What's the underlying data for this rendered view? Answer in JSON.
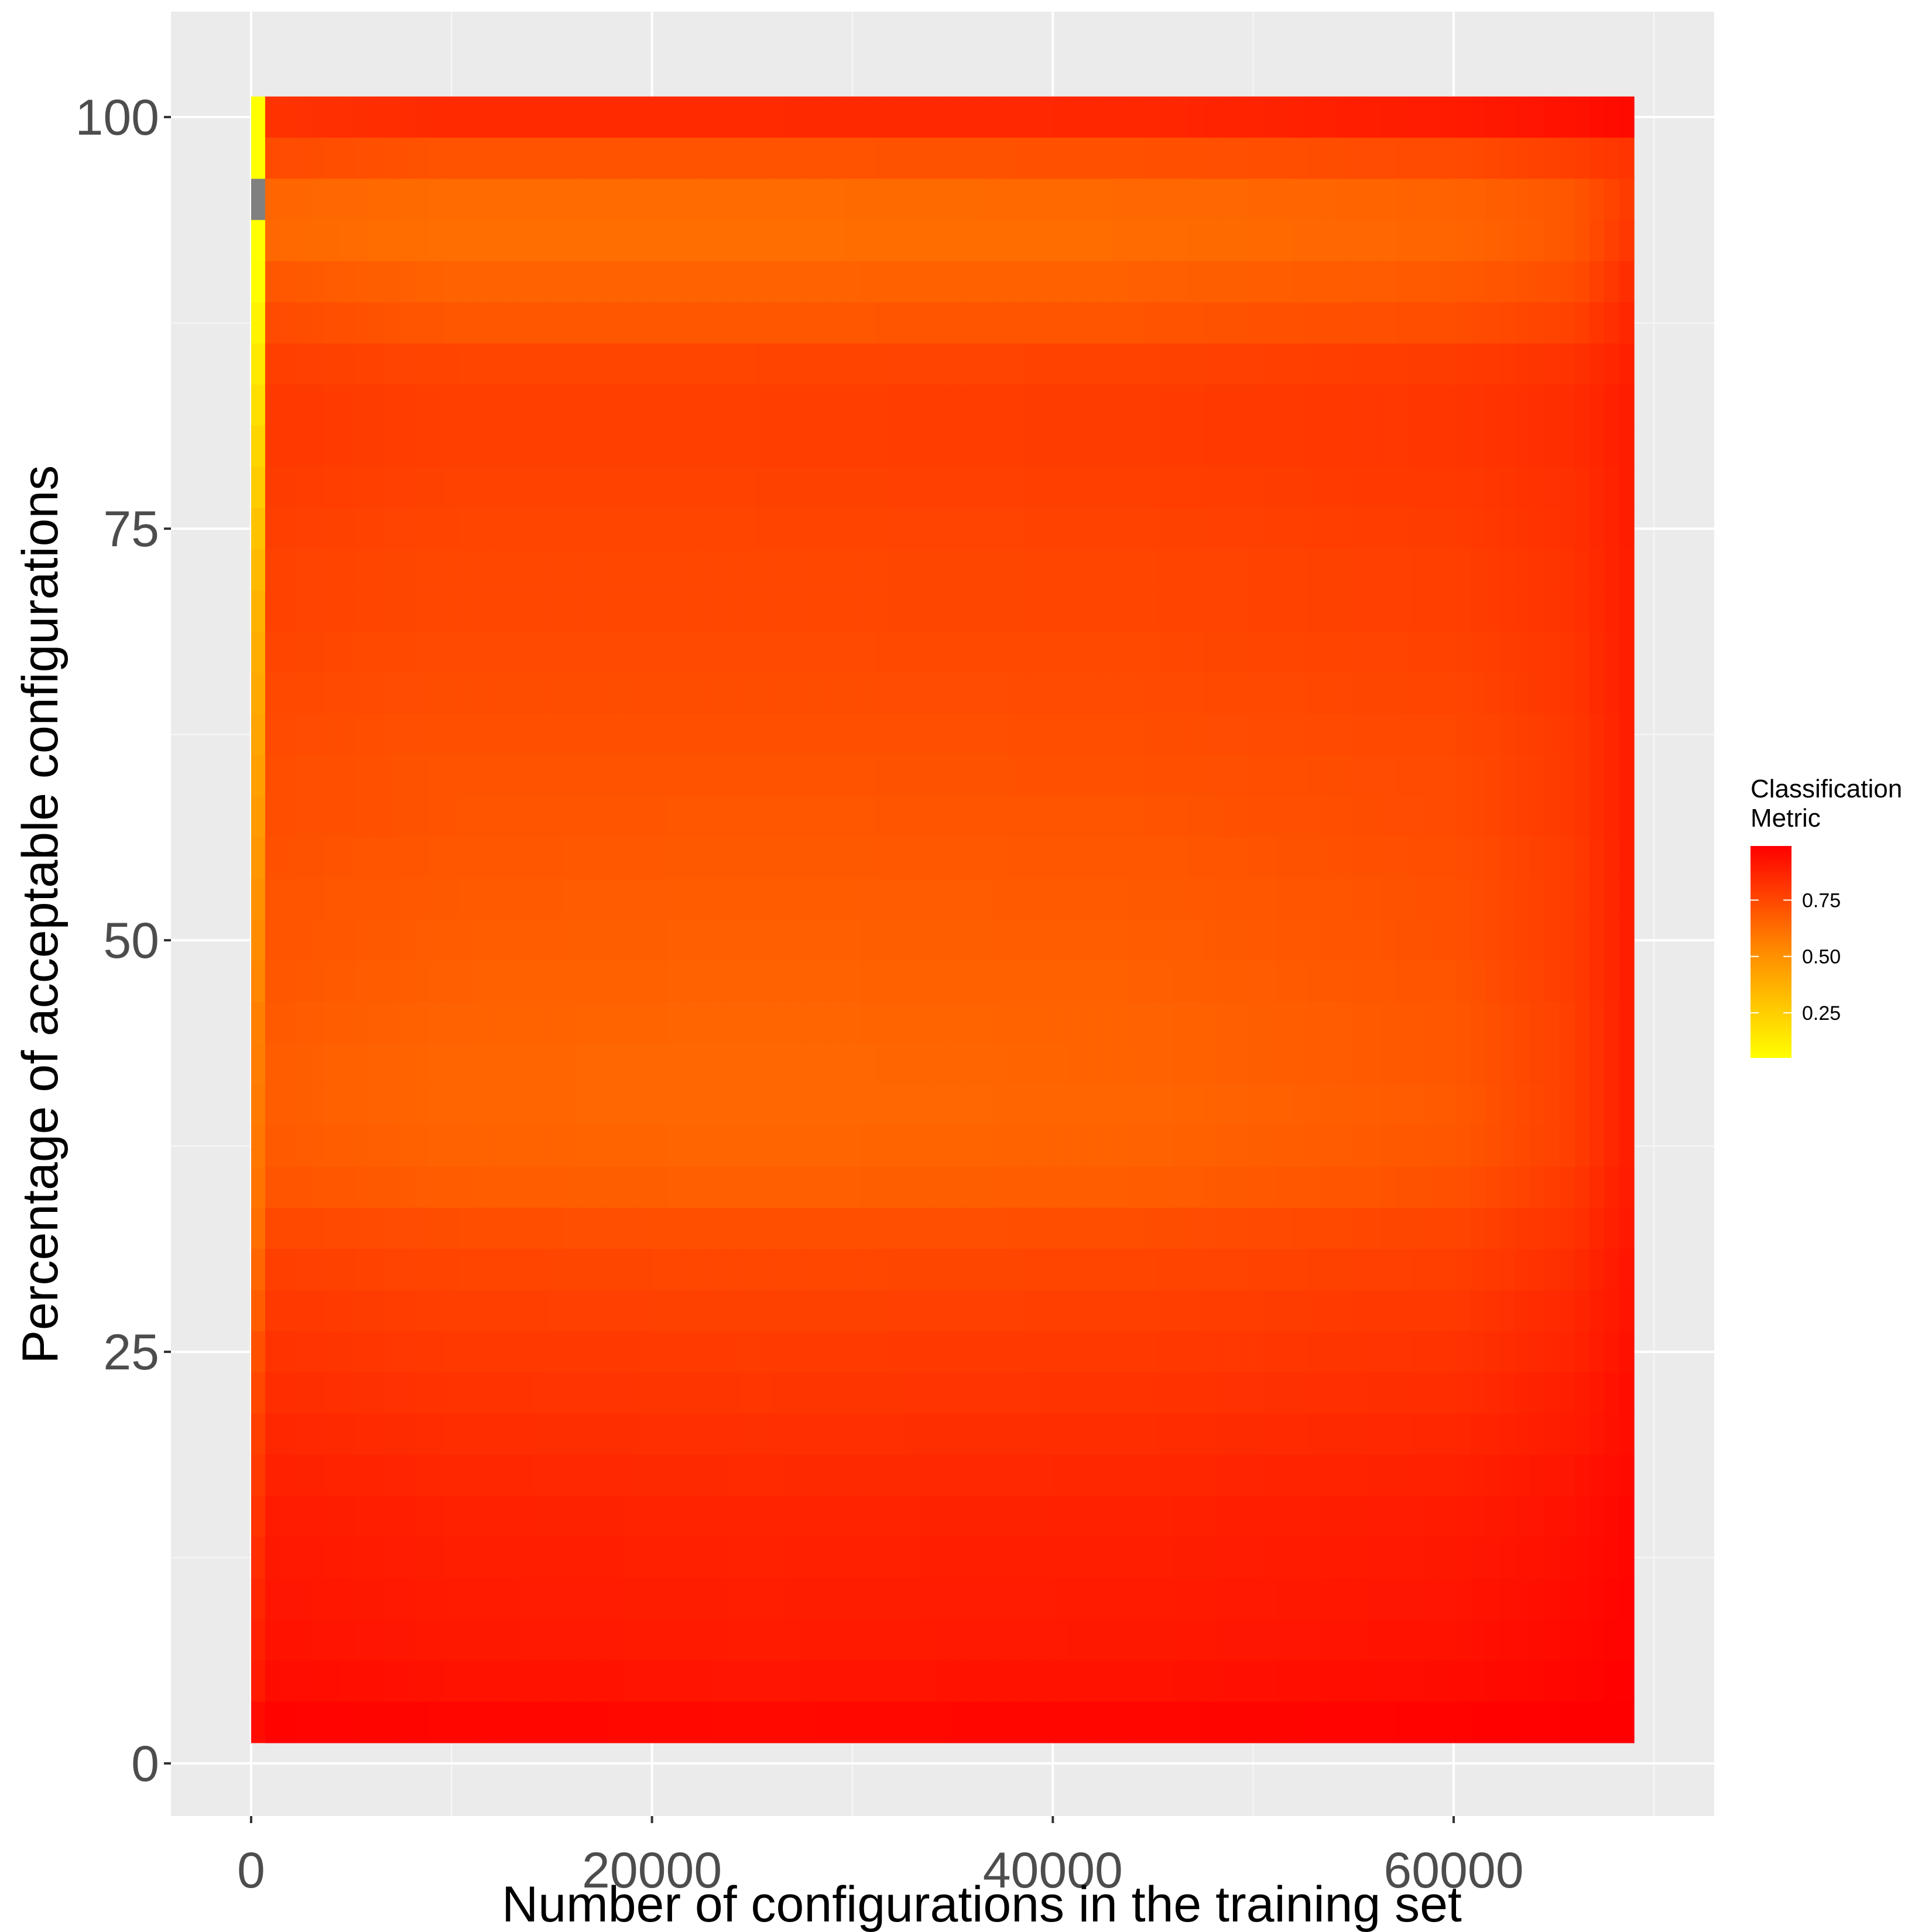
{
  "chart_data": {
    "type": "heatmap",
    "title": "",
    "xlabel": "Number of configurations in the training set",
    "ylabel": "Percentage of acceptable configurations",
    "x_ticks": [
      0,
      20000,
      40000,
      60000
    ],
    "x_tick_labels": [
      "0",
      "20000",
      "40000",
      "60000"
    ],
    "y_ticks": [
      0,
      25,
      50,
      75,
      100
    ],
    "y_tick_labels": [
      "0",
      "25",
      "50",
      "75",
      "100"
    ],
    "xlim": [
      -4000,
      73000
    ],
    "ylim": [
      -3.2,
      106.4
    ],
    "grid": true,
    "x_range": [
      0,
      69000
    ],
    "y_range": [
      1.3,
      101.3
    ],
    "cell_height": 2.5,
    "first_column_width": 700,
    "legend": {
      "title": "Classification\nMetric",
      "breaks": [
        0.25,
        0.5,
        0.75
      ],
      "labels": [
        "0.25",
        "0.50",
        "0.75"
      ],
      "range": [
        0.05,
        0.99
      ],
      "low_color": "#ffff00",
      "high_color": "#ff0000",
      "placement": "right"
    },
    "first_column": {
      "x": 0,
      "y_centers": [
        100,
        97.5,
        95,
        92.5,
        90,
        87.5,
        85,
        82.5,
        80,
        77.5,
        75,
        72.5,
        70,
        67.5,
        65,
        62.5,
        60,
        57.5,
        55,
        52.5,
        50,
        47.5,
        45,
        42.5,
        40,
        37.5,
        35,
        32.5,
        30,
        27.5,
        25,
        22.5,
        20,
        17.5,
        15,
        12.5,
        10,
        7.5,
        5,
        2.5
      ],
      "values": [
        0.05,
        0.05,
        null,
        0.05,
        0.06,
        0.1,
        0.14,
        0.18,
        0.22,
        0.26,
        0.3,
        0.33,
        0.36,
        0.38,
        0.4,
        0.42,
        0.44,
        0.46,
        0.48,
        0.5,
        0.52,
        0.54,
        0.56,
        0.57,
        0.58,
        0.59,
        0.6,
        0.62,
        0.65,
        0.68,
        0.72,
        0.75,
        0.78,
        0.8,
        0.82,
        0.84,
        0.86,
        0.88,
        0.9,
        0.95
      ]
    },
    "rows": {
      "y_centers": [
        100,
        97.5,
        95,
        92.5,
        90,
        87.5,
        85,
        82.5,
        80,
        77.5,
        75,
        72.5,
        70,
        67.5,
        65,
        62.5,
        60,
        57.5,
        55,
        52.5,
        50,
        47.5,
        45,
        42.5,
        40,
        37.5,
        35,
        32.5,
        30,
        27.5,
        25,
        22.5,
        20,
        17.5,
        15,
        12.5,
        10,
        7.5,
        5,
        2.5
      ],
      "x_knots": [
        700,
        10000,
        25000,
        45000,
        60000,
        66000,
        69000
      ],
      "values": [
        [
          0.82,
          0.85,
          0.85,
          0.86,
          0.9,
          0.93,
          0.96
        ],
        [
          0.74,
          0.71,
          0.71,
          0.72,
          0.74,
          0.78,
          0.82
        ],
        [
          0.65,
          0.63,
          0.63,
          0.64,
          0.66,
          0.7,
          0.8
        ],
        [
          0.64,
          0.62,
          0.62,
          0.63,
          0.65,
          0.7,
          0.82
        ],
        [
          0.7,
          0.66,
          0.66,
          0.67,
          0.69,
          0.73,
          0.85
        ],
        [
          0.74,
          0.7,
          0.7,
          0.71,
          0.73,
          0.77,
          0.87
        ],
        [
          0.78,
          0.76,
          0.76,
          0.77,
          0.79,
          0.82,
          0.89
        ],
        [
          0.8,
          0.78,
          0.78,
          0.79,
          0.81,
          0.84,
          0.9
        ],
        [
          0.8,
          0.78,
          0.78,
          0.79,
          0.81,
          0.84,
          0.9
        ],
        [
          0.79,
          0.77,
          0.77,
          0.78,
          0.8,
          0.83,
          0.9
        ],
        [
          0.78,
          0.76,
          0.76,
          0.77,
          0.79,
          0.83,
          0.9
        ],
        [
          0.77,
          0.75,
          0.75,
          0.76,
          0.78,
          0.82,
          0.9
        ],
        [
          0.77,
          0.75,
          0.75,
          0.76,
          0.78,
          0.82,
          0.9
        ],
        [
          0.76,
          0.74,
          0.74,
          0.75,
          0.77,
          0.81,
          0.9
        ],
        [
          0.75,
          0.73,
          0.73,
          0.74,
          0.76,
          0.81,
          0.9
        ],
        [
          0.74,
          0.72,
          0.72,
          0.73,
          0.75,
          0.8,
          0.9
        ],
        [
          0.73,
          0.71,
          0.71,
          0.72,
          0.74,
          0.8,
          0.9
        ],
        [
          0.73,
          0.71,
          0.7,
          0.71,
          0.74,
          0.8,
          0.9
        ],
        [
          0.72,
          0.7,
          0.69,
          0.7,
          0.73,
          0.79,
          0.9
        ],
        [
          0.71,
          0.69,
          0.68,
          0.69,
          0.72,
          0.79,
          0.9
        ],
        [
          0.71,
          0.68,
          0.67,
          0.68,
          0.72,
          0.79,
          0.9
        ],
        [
          0.7,
          0.67,
          0.66,
          0.67,
          0.71,
          0.79,
          0.9
        ],
        [
          0.69,
          0.66,
          0.65,
          0.66,
          0.7,
          0.78,
          0.9
        ],
        [
          0.68,
          0.65,
          0.64,
          0.66,
          0.7,
          0.78,
          0.9
        ],
        [
          0.68,
          0.65,
          0.64,
          0.65,
          0.69,
          0.78,
          0.9
        ],
        [
          0.69,
          0.66,
          0.65,
          0.66,
          0.7,
          0.78,
          0.9
        ],
        [
          0.71,
          0.68,
          0.67,
          0.68,
          0.72,
          0.8,
          0.91
        ],
        [
          0.75,
          0.73,
          0.72,
          0.73,
          0.76,
          0.82,
          0.92
        ],
        [
          0.78,
          0.76,
          0.75,
          0.76,
          0.78,
          0.84,
          0.93
        ],
        [
          0.8,
          0.78,
          0.77,
          0.78,
          0.8,
          0.86,
          0.93
        ],
        [
          0.82,
          0.8,
          0.79,
          0.8,
          0.82,
          0.87,
          0.94
        ],
        [
          0.84,
          0.82,
          0.81,
          0.82,
          0.84,
          0.89,
          0.95
        ],
        [
          0.86,
          0.84,
          0.83,
          0.84,
          0.86,
          0.9,
          0.95
        ],
        [
          0.88,
          0.86,
          0.85,
          0.86,
          0.88,
          0.92,
          0.96
        ],
        [
          0.9,
          0.88,
          0.87,
          0.88,
          0.9,
          0.93,
          0.97
        ],
        [
          0.91,
          0.89,
          0.88,
          0.89,
          0.91,
          0.94,
          0.97
        ],
        [
          0.92,
          0.9,
          0.89,
          0.9,
          0.92,
          0.95,
          0.98
        ],
        [
          0.93,
          0.91,
          0.9,
          0.91,
          0.93,
          0.96,
          0.98
        ],
        [
          0.95,
          0.93,
          0.92,
          0.93,
          0.95,
          0.97,
          0.99
        ],
        [
          0.98,
          0.97,
          0.96,
          0.97,
          0.98,
          0.99,
          0.99
        ]
      ]
    },
    "na_color": "#808080"
  }
}
